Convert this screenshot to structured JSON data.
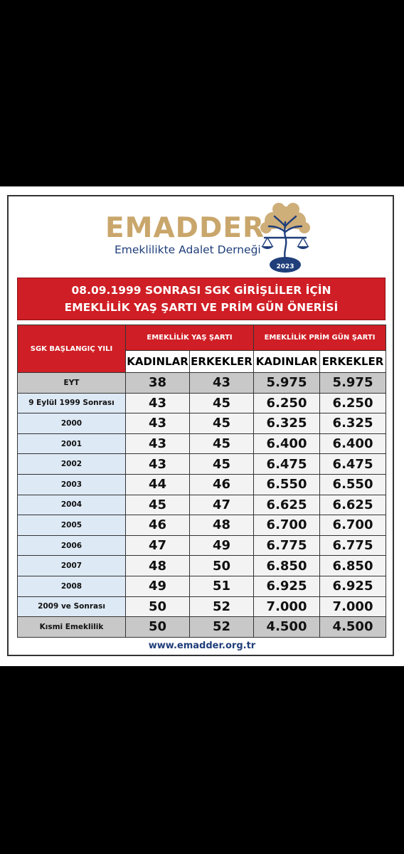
{
  "logo": {
    "name": "EMADDER",
    "subtitle": "Emeklilikte Adalet Derneği",
    "year": "2023"
  },
  "banner": {
    "line1": "08.09.1999 SONRASI SGK GİRİŞLİLER İÇİN",
    "line2": "EMEKLİLİK YAŞ ŞARTI VE PRİM GÜN ÖNERİSİ"
  },
  "table": {
    "header": {
      "col1": "SGK BAŞLANGIÇ YILI",
      "group_age": "EMEKLİLİK YAŞ ŞARTI",
      "group_prim": "EMEKLİLİK PRİM GÜN ŞARTI",
      "women": "KADINLAR",
      "men": "ERKEKLER"
    },
    "rows": [
      {
        "label": "EYT",
        "age_w": "38",
        "age_m": "43",
        "prim_w": "5.975",
        "prim_m": "5.975"
      },
      {
        "label": "9 Eylül 1999 Sonrası",
        "age_w": "43",
        "age_m": "45",
        "prim_w": "6.250",
        "prim_m": "6.250"
      },
      {
        "label": "2000",
        "age_w": "43",
        "age_m": "45",
        "prim_w": "6.325",
        "prim_m": "6.325"
      },
      {
        "label": "2001",
        "age_w": "43",
        "age_m": "45",
        "prim_w": "6.400",
        "prim_m": "6.400"
      },
      {
        "label": "2002",
        "age_w": "43",
        "age_m": "45",
        "prim_w": "6.475",
        "prim_m": "6.475"
      },
      {
        "label": "2003",
        "age_w": "44",
        "age_m": "46",
        "prim_w": "6.550",
        "prim_m": "6.550"
      },
      {
        "label": "2004",
        "age_w": "45",
        "age_m": "47",
        "prim_w": "6.625",
        "prim_m": "6.625"
      },
      {
        "label": "2005",
        "age_w": "46",
        "age_m": "48",
        "prim_w": "6.700",
        "prim_m": "6.700"
      },
      {
        "label": "2006",
        "age_w": "47",
        "age_m": "49",
        "prim_w": "6.775",
        "prim_m": "6.775"
      },
      {
        "label": "2007",
        "age_w": "48",
        "age_m": "50",
        "prim_w": "6.850",
        "prim_m": "6.850"
      },
      {
        "label": "2008",
        "age_w": "49",
        "age_m": "51",
        "prim_w": "6.925",
        "prim_m": "6.925"
      },
      {
        "label": "2009 ve Sonrası",
        "age_w": "50",
        "age_m": "52",
        "prim_w": "7.000",
        "prim_m": "7.000"
      },
      {
        "label": "Kısmi Emeklilik",
        "age_w": "50",
        "age_m": "52",
        "prim_w": "4.500",
        "prim_m": "4.500"
      }
    ]
  },
  "footer": {
    "url": "www.emadder.org.tr"
  },
  "colors": {
    "red": "#cf1e25",
    "navy": "#1f3e7a",
    "gold": "#c9a66b",
    "light_blue": "#dde9f5",
    "gray": "#c8c8c8"
  },
  "icons": {
    "emblem": "tree-scales-emblem-icon"
  }
}
